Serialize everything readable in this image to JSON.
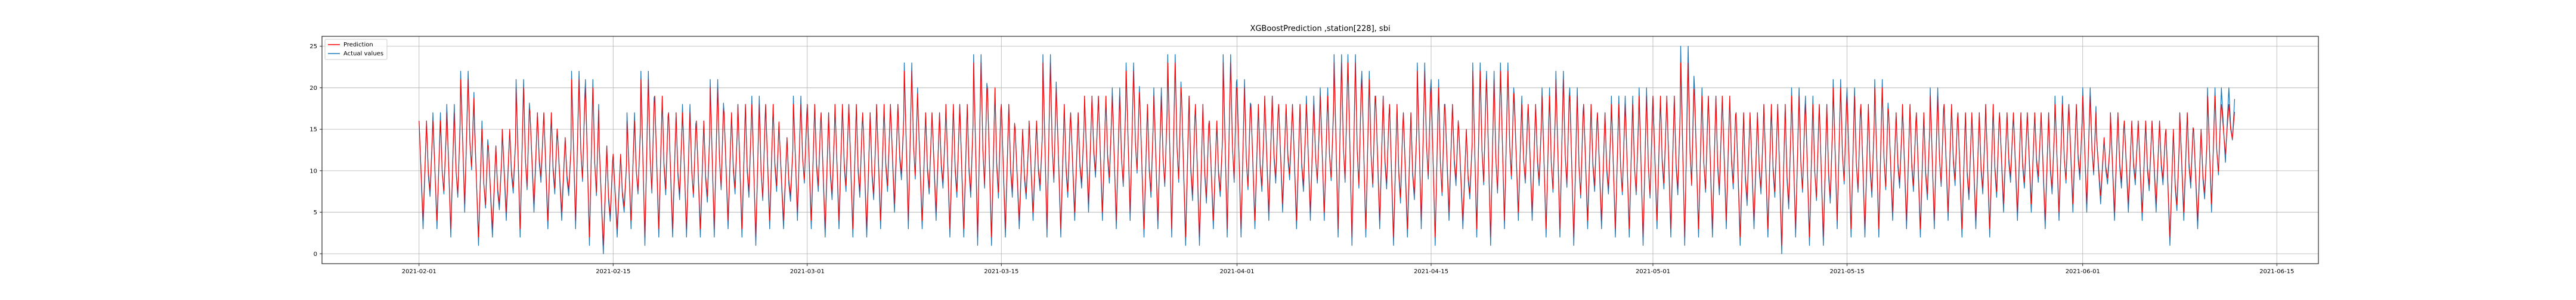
{
  "figure": {
    "title": "XGBoostPrediction ,station[228], sbi"
  },
  "legend": {
    "placement": "upper-left",
    "items": [
      {
        "label": "Prediction",
        "color": "#ff0000"
      },
      {
        "label": "Actual values",
        "color": "#1f77b4"
      }
    ]
  },
  "chart_data": {
    "type": "line",
    "title": "XGBoostPrediction ,station[228], sbi",
    "xlabel": "",
    "ylabel": "",
    "x_start": "2021-02-01",
    "x_end": "2021-06-12",
    "xlim": [
      "2021-01-25",
      "2021-06-18"
    ],
    "ylim": [
      -1.2,
      26.2
    ],
    "grid": true,
    "legend_placement": "upper-left",
    "x_ticks": [
      "2021-02-01",
      "2021-02-15",
      "2021-03-01",
      "2021-03-15",
      "2021-04-01",
      "2021-04-15",
      "2021-05-01",
      "2021-05-15",
      "2021-06-01",
      "2021-06-15"
    ],
    "y_ticks": [
      0,
      5,
      10,
      15,
      20,
      25
    ],
    "series": [
      {
        "name": "Actual values",
        "color": "#1f77b4",
        "daily_high": [
          16,
          17,
          18,
          22,
          16,
          13,
          15,
          21,
          17,
          17,
          14,
          22,
          21,
          13,
          12,
          17,
          22,
          19,
          17,
          18,
          16,
          21,
          17,
          18,
          19,
          18,
          14,
          19,
          18,
          17,
          18,
          18,
          17,
          18,
          18,
          23,
          17,
          17,
          18,
          18,
          24,
          20,
          18,
          15,
          16,
          24,
          18,
          17,
          19,
          19,
          20,
          23,
          18,
          20,
          24,
          19,
          18,
          16,
          24,
          21,
          18,
          19,
          18,
          18,
          19,
          20,
          24,
          24,
          22,
          19,
          18,
          17,
          23,
          21,
          18,
          15,
          23,
          22,
          23,
          19,
          18,
          20,
          22,
          20,
          18,
          17,
          19,
          19,
          20,
          19,
          19,
          25,
          20,
          19,
          19,
          17,
          17,
          18,
          18,
          20,
          19,
          18,
          21,
          20,
          18,
          21,
          17,
          18,
          17,
          20,
          18,
          17,
          17,
          18,
          17,
          17,
          17,
          17,
          19,
          18,
          20,
          14,
          17,
          16,
          16,
          16,
          15,
          17,
          15,
          20,
          20
        ],
        "daily_low": [
          3,
          3,
          2,
          5,
          1,
          2,
          4,
          2,
          5,
          3,
          4,
          3,
          1,
          0,
          2,
          3,
          1,
          2,
          2,
          2,
          2,
          2,
          3,
          2,
          1,
          3,
          3,
          4,
          3,
          2,
          3,
          2,
          2,
          3,
          5,
          3,
          3,
          4,
          2,
          2,
          1,
          1,
          2,
          3,
          4,
          2,
          2,
          4,
          5,
          4,
          3,
          4,
          2,
          3,
          2,
          1,
          1,
          3,
          2,
          2,
          3,
          4,
          5,
          3,
          4,
          4,
          2,
          1,
          2,
          3,
          1,
          2,
          3,
          1,
          4,
          3,
          2,
          1,
          3,
          4,
          4,
          2,
          2,
          1,
          3,
          3,
          2,
          2,
          1,
          3,
          2,
          1,
          2,
          2,
          3,
          1,
          3,
          2,
          0,
          2,
          1,
          1,
          3,
          2,
          2,
          2,
          4,
          3,
          2,
          3,
          4,
          2,
          3,
          2,
          5,
          4,
          5,
          3,
          4,
          5,
          5,
          6,
          4,
          5,
          4,
          5,
          1,
          4,
          3,
          5,
          11
        ]
      },
      {
        "name": "Prediction",
        "color": "#ff0000",
        "daily_high": [
          16,
          16,
          17,
          21,
          15,
          13,
          15,
          20,
          17,
          17,
          14,
          21,
          20,
          13,
          12,
          16,
          21,
          19,
          17,
          17,
          16,
          20,
          17,
          18,
          18,
          18,
          14,
          18,
          18,
          17,
          18,
          18,
          17,
          18,
          18,
          22,
          17,
          17,
          18,
          18,
          23,
          20,
          18,
          15,
          16,
          23,
          18,
          17,
          19,
          19,
          19,
          22,
          18,
          19,
          23,
          19,
          18,
          16,
          23,
          20,
          18,
          19,
          18,
          18,
          18,
          19,
          23,
          23,
          21,
          19,
          18,
          17,
          22,
          20,
          18,
          15,
          22,
          21,
          22,
          18,
          18,
          19,
          21,
          19,
          18,
          17,
          18,
          18,
          19,
          19,
          19,
          23,
          19,
          19,
          19,
          17,
          17,
          18,
          18,
          19,
          18,
          18,
          20,
          19,
          18,
          20,
          17,
          18,
          17,
          19,
          18,
          17,
          17,
          18,
          17,
          17,
          17,
          17,
          18,
          18,
          19,
          14,
          17,
          16,
          16,
          16,
          15,
          17,
          15,
          19,
          18
        ],
        "daily_low": [
          4,
          4,
          3,
          6,
          2,
          3,
          5,
          3,
          6,
          4,
          5,
          4,
          2,
          1,
          3,
          4,
          2,
          3,
          3,
          3,
          3,
          3,
          4,
          3,
          2,
          4,
          4,
          5,
          4,
          3,
          4,
          3,
          3,
          4,
          6,
          4,
          4,
          5,
          3,
          3,
          2,
          2,
          3,
          4,
          5,
          3,
          3,
          5,
          6,
          5,
          4,
          5,
          3,
          4,
          3,
          2,
          2,
          4,
          3,
          3,
          4,
          5,
          6,
          4,
          5,
          5,
          3,
          2,
          3,
          4,
          2,
          3,
          4,
          2,
          5,
          4,
          3,
          2,
          4,
          5,
          5,
          3,
          3,
          2,
          4,
          4,
          3,
          3,
          2,
          4,
          3,
          2,
          3,
          3,
          4,
          2,
          4,
          3,
          1,
          3,
          2,
          2,
          4,
          3,
          3,
          3,
          5,
          4,
          3,
          4,
          5,
          3,
          4,
          3,
          6,
          5,
          6,
          4,
          5,
          6,
          6,
          7,
          5,
          6,
          5,
          6,
          2,
          5,
          4,
          6,
          12
        ]
      }
    ]
  }
}
